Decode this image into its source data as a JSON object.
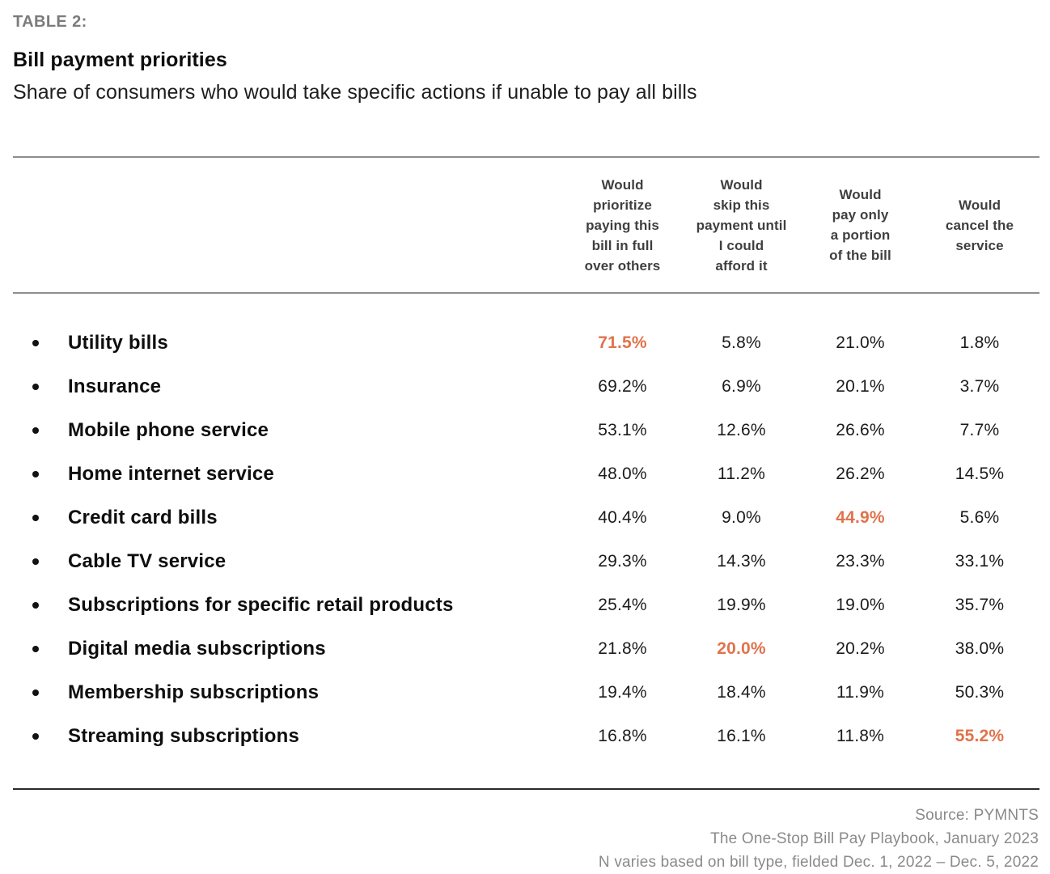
{
  "page": {
    "table_label": "TABLE 2:",
    "title": "Bill payment priorities",
    "subtitle": "Share of consumers who would take specific actions if unable to pay all bills"
  },
  "columns": [
    {
      "label": "Would prioritize paying this bill in full over others",
      "lines": [
        "Would",
        "prioritize",
        "paying this",
        "bill in full",
        "over others"
      ]
    },
    {
      "label": "Would skip this payment until I could afford it",
      "lines": [
        "Would",
        "skip this",
        "payment until",
        "I could",
        "afford it"
      ]
    },
    {
      "label": "Would pay only a portion of the bill",
      "lines": [
        "Would",
        "pay only",
        "a portion",
        "of the bill"
      ]
    },
    {
      "label": "Would cancel the service",
      "lines": [
        "Would",
        "cancel the",
        "service"
      ]
    }
  ],
  "rows": [
    {
      "label": "Utility bills",
      "values": [
        "71.5%",
        "5.8%",
        "21.0%",
        "1.8%"
      ],
      "highlight": 0
    },
    {
      "label": "Insurance",
      "values": [
        "69.2%",
        "6.9%",
        "20.1%",
        "3.7%"
      ],
      "highlight": null
    },
    {
      "label": "Mobile phone service",
      "values": [
        "53.1%",
        "12.6%",
        "26.6%",
        "7.7%"
      ],
      "highlight": null
    },
    {
      "label": "Home internet service",
      "values": [
        "48.0%",
        "11.2%",
        "26.2%",
        "14.5%"
      ],
      "highlight": null
    },
    {
      "label": "Credit card bills",
      "values": [
        "40.4%",
        "9.0%",
        "44.9%",
        "5.6%"
      ],
      "highlight": 2
    },
    {
      "label": "Cable TV service",
      "values": [
        "29.3%",
        "14.3%",
        "23.3%",
        "33.1%"
      ],
      "highlight": null
    },
    {
      "label": "Subscriptions for specific retail products",
      "values": [
        "25.4%",
        "19.9%",
        "19.0%",
        "35.7%"
      ],
      "highlight": null
    },
    {
      "label": "Digital media subscriptions",
      "values": [
        "21.8%",
        "20.0%",
        "20.2%",
        "38.0%"
      ],
      "highlight": 1
    },
    {
      "label": "Membership subscriptions",
      "values": [
        "19.4%",
        "18.4%",
        "11.9%",
        "50.3%"
      ],
      "highlight": null
    },
    {
      "label": "Streaming subscriptions",
      "values": [
        "16.8%",
        "16.1%",
        "11.8%",
        "55.2%"
      ],
      "highlight": 3
    }
  ],
  "footer": {
    "line1": "Source: PYMNTS",
    "line2": "The One-Stop Bill Pay Playbook, January 2023",
    "line3": "N varies based on bill type, fielded Dec. 1, 2022 – Dec. 5, 2022"
  },
  "colors": {
    "accent": "#E0734C",
    "rule_gray": "#8E8E8E",
    "rule_dark": "#2A2A2A",
    "header_text": "#3F3F3F",
    "muted": "#8A8A8A"
  },
  "chart_data": {
    "type": "table",
    "title": "Bill payment priorities",
    "subtitle": "Share of consumers who would take specific actions if unable to pay all bills",
    "categories": [
      "Utility bills",
      "Insurance",
      "Mobile phone service",
      "Home internet service",
      "Credit card bills",
      "Cable TV service",
      "Subscriptions for specific retail products",
      "Digital media subscriptions",
      "Membership subscriptions",
      "Streaming subscriptions"
    ],
    "series": [
      {
        "name": "Would prioritize paying this bill in full over others",
        "values": [
          71.5,
          69.2,
          53.1,
          48.0,
          40.4,
          29.3,
          25.4,
          21.8,
          19.4,
          16.8
        ]
      },
      {
        "name": "Would skip this payment until I could afford it",
        "values": [
          5.8,
          6.9,
          12.6,
          11.2,
          9.0,
          14.3,
          19.9,
          20.0,
          18.4,
          16.1
        ]
      },
      {
        "name": "Would pay only a portion of the bill",
        "values": [
          21.0,
          20.1,
          26.6,
          26.2,
          44.9,
          23.3,
          19.0,
          20.2,
          11.9,
          11.8
        ]
      },
      {
        "name": "Would cancel the service",
        "values": [
          1.8,
          3.7,
          7.7,
          14.5,
          5.6,
          33.1,
          35.7,
          38.0,
          50.3,
          55.2
        ]
      }
    ],
    "unit": "%",
    "highlighted_cells": [
      {
        "category": "Utility bills",
        "series": "Would prioritize paying this bill in full over others",
        "value": 71.5
      },
      {
        "category": "Credit card bills",
        "series": "Would pay only a portion of the bill",
        "value": 44.9
      },
      {
        "category": "Digital media subscriptions",
        "series": "Would skip this payment until I could afford it",
        "value": 20.0
      },
      {
        "category": "Streaming subscriptions",
        "series": "Would cancel the service",
        "value": 55.2
      }
    ],
    "source": [
      "Source: PYMNTS",
      "The One-Stop Bill Pay Playbook, January 2023",
      "N varies based on bill type, fielded Dec. 1, 2022 – Dec. 5, 2022"
    ]
  }
}
